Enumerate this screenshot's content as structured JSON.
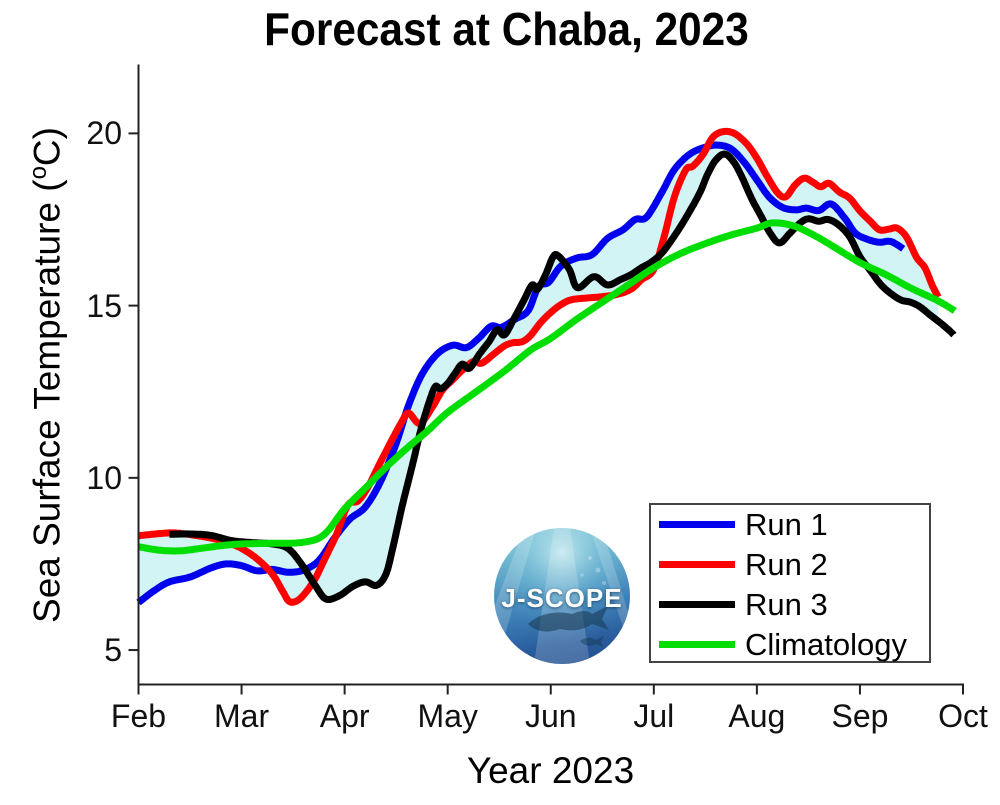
{
  "title": "Forecast at Chaba, 2023",
  "axes": {
    "xlabel": "Year 2023",
    "ylabel_prefix": "Sea Surface Temperature (",
    "ylabel_sup": "o",
    "ylabel_suffix": "C)",
    "x_tick_labels": [
      "Feb",
      "Mar",
      "Apr",
      "May",
      "Jun",
      "Jul",
      "Aug",
      "Sep",
      "Oct"
    ],
    "y_tick_labels": [
      "5",
      "10",
      "15",
      "20"
    ],
    "y_tick_values": [
      5,
      10,
      15,
      20
    ],
    "ylim": [
      4,
      22
    ]
  },
  "legend": {
    "entries": [
      {
        "label": "Run 1",
        "color": "#0000ee"
      },
      {
        "label": "Run 2",
        "color": "#ff0000"
      },
      {
        "label": "Run 3",
        "color": "#000000"
      },
      {
        "label": "Climatology",
        "color": "#00dd00"
      }
    ]
  },
  "logo": {
    "text": "J-SCOPE"
  },
  "chart_data": {
    "type": "line",
    "title": "Forecast at Chaba, 2023",
    "xlabel": "Year 2023",
    "ylabel": "Sea Surface Temperature (oC)",
    "x_unit": "months since Feb 1, 2023 (0=Feb ... 8=Oct)",
    "ylim": [
      4,
      22
    ],
    "fill_between_runs_color": "#d2f4f4",
    "series": [
      {
        "name": "Run 1",
        "color": "#0000ee",
        "points": [
          [
            0.0,
            6.38
          ],
          [
            0.15,
            6.72
          ],
          [
            0.3,
            6.98
          ],
          [
            0.5,
            7.12
          ],
          [
            0.7,
            7.38
          ],
          [
            0.85,
            7.5
          ],
          [
            1.0,
            7.45
          ],
          [
            1.15,
            7.3
          ],
          [
            1.3,
            7.34
          ],
          [
            1.45,
            7.26
          ],
          [
            1.6,
            7.32
          ],
          [
            1.75,
            7.6
          ],
          [
            1.9,
            8.25
          ],
          [
            2.05,
            8.8
          ],
          [
            2.2,
            9.15
          ],
          [
            2.35,
            9.9
          ],
          [
            2.5,
            11.0
          ],
          [
            2.62,
            12.1
          ],
          [
            2.75,
            13.0
          ],
          [
            2.9,
            13.6
          ],
          [
            3.05,
            13.85
          ],
          [
            3.18,
            13.78
          ],
          [
            3.3,
            14.05
          ],
          [
            3.42,
            14.4
          ],
          [
            3.52,
            14.37
          ],
          [
            3.65,
            14.6
          ],
          [
            3.78,
            14.85
          ],
          [
            3.88,
            15.55
          ],
          [
            3.98,
            15.68
          ],
          [
            4.1,
            16.15
          ],
          [
            4.25,
            16.38
          ],
          [
            4.4,
            16.48
          ],
          [
            4.55,
            16.95
          ],
          [
            4.7,
            17.2
          ],
          [
            4.82,
            17.5
          ],
          [
            4.93,
            17.57
          ],
          [
            5.08,
            18.3
          ],
          [
            5.2,
            18.95
          ],
          [
            5.35,
            19.4
          ],
          [
            5.5,
            19.6
          ],
          [
            5.62,
            19.66
          ],
          [
            5.75,
            19.55
          ],
          [
            5.88,
            19.15
          ],
          [
            6.0,
            18.65
          ],
          [
            6.12,
            18.15
          ],
          [
            6.25,
            17.85
          ],
          [
            6.38,
            17.78
          ],
          [
            6.48,
            17.83
          ],
          [
            6.6,
            17.76
          ],
          [
            6.72,
            17.95
          ],
          [
            6.85,
            17.55
          ],
          [
            6.95,
            17.12
          ],
          [
            7.05,
            16.95
          ],
          [
            7.18,
            16.84
          ],
          [
            7.3,
            16.86
          ],
          [
            7.42,
            16.65
          ]
        ]
      },
      {
        "name": "Run 2",
        "color": "#ff0000",
        "points": [
          [
            0.0,
            8.32
          ],
          [
            0.2,
            8.38
          ],
          [
            0.35,
            8.4
          ],
          [
            0.55,
            8.33
          ],
          [
            0.75,
            8.22
          ],
          [
            0.9,
            8.08
          ],
          [
            1.0,
            7.95
          ],
          [
            1.15,
            7.65
          ],
          [
            1.3,
            7.2
          ],
          [
            1.4,
            6.7
          ],
          [
            1.47,
            6.4
          ],
          [
            1.57,
            6.5
          ],
          [
            1.7,
            7.0
          ],
          [
            1.8,
            7.6
          ],
          [
            1.92,
            8.35
          ],
          [
            2.03,
            9.2
          ],
          [
            2.13,
            9.33
          ],
          [
            2.22,
            9.7
          ],
          [
            2.33,
            10.35
          ],
          [
            2.45,
            11.05
          ],
          [
            2.55,
            11.6
          ],
          [
            2.62,
            11.88
          ],
          [
            2.73,
            11.58
          ],
          [
            2.85,
            12.05
          ],
          [
            2.95,
            12.55
          ],
          [
            3.05,
            12.85
          ],
          [
            3.15,
            13.15
          ],
          [
            3.25,
            13.38
          ],
          [
            3.33,
            13.33
          ],
          [
            3.45,
            13.6
          ],
          [
            3.55,
            13.83
          ],
          [
            3.63,
            13.92
          ],
          [
            3.72,
            13.95
          ],
          [
            3.8,
            14.12
          ],
          [
            3.9,
            14.5
          ],
          [
            4.0,
            14.8
          ],
          [
            4.1,
            15.03
          ],
          [
            4.2,
            15.17
          ],
          [
            4.35,
            15.22
          ],
          [
            4.5,
            15.26
          ],
          [
            4.65,
            15.33
          ],
          [
            4.78,
            15.48
          ],
          [
            4.88,
            15.75
          ],
          [
            5.0,
            16.05
          ],
          [
            5.1,
            17.0
          ],
          [
            5.2,
            18.16
          ],
          [
            5.31,
            18.94
          ],
          [
            5.38,
            19.05
          ],
          [
            5.48,
            19.4
          ],
          [
            5.57,
            19.88
          ],
          [
            5.67,
            20.05
          ],
          [
            5.78,
            20.0
          ],
          [
            5.9,
            19.7
          ],
          [
            6.0,
            19.28
          ],
          [
            6.1,
            18.75
          ],
          [
            6.2,
            18.28
          ],
          [
            6.28,
            18.16
          ],
          [
            6.37,
            18.5
          ],
          [
            6.46,
            18.7
          ],
          [
            6.55,
            18.57
          ],
          [
            6.62,
            18.45
          ],
          [
            6.7,
            18.55
          ],
          [
            6.8,
            18.3
          ],
          [
            6.9,
            18.12
          ],
          [
            7.0,
            17.75
          ],
          [
            7.1,
            17.45
          ],
          [
            7.19,
            17.2
          ],
          [
            7.28,
            17.22
          ],
          [
            7.36,
            17.25
          ],
          [
            7.45,
            17.0
          ],
          [
            7.55,
            16.4
          ],
          [
            7.63,
            16.1
          ],
          [
            7.7,
            15.6
          ],
          [
            7.76,
            15.25
          ]
        ]
      },
      {
        "name": "Run 3",
        "color": "#000000",
        "points": [
          [
            0.3,
            8.36
          ],
          [
            0.5,
            8.37
          ],
          [
            0.7,
            8.33
          ],
          [
            0.9,
            8.18
          ],
          [
            1.1,
            8.12
          ],
          [
            1.3,
            8.08
          ],
          [
            1.45,
            7.95
          ],
          [
            1.58,
            7.5
          ],
          [
            1.72,
            6.85
          ],
          [
            1.82,
            6.48
          ],
          [
            1.95,
            6.58
          ],
          [
            2.08,
            6.85
          ],
          [
            2.2,
            6.98
          ],
          [
            2.31,
            6.88
          ],
          [
            2.4,
            7.2
          ],
          [
            2.47,
            8.0
          ],
          [
            2.56,
            9.2
          ],
          [
            2.66,
            10.4
          ],
          [
            2.74,
            11.4
          ],
          [
            2.82,
            12.2
          ],
          [
            2.88,
            12.65
          ],
          [
            2.93,
            12.58
          ],
          [
            3.0,
            12.74
          ],
          [
            3.07,
            13.03
          ],
          [
            3.14,
            13.3
          ],
          [
            3.21,
            13.18
          ],
          [
            3.31,
            13.6
          ],
          [
            3.4,
            13.95
          ],
          [
            3.48,
            14.3
          ],
          [
            3.55,
            14.15
          ],
          [
            3.64,
            14.6
          ],
          [
            3.74,
            15.16
          ],
          [
            3.82,
            15.6
          ],
          [
            3.87,
            15.47
          ],
          [
            3.95,
            15.9
          ],
          [
            4.02,
            16.4
          ],
          [
            4.07,
            16.45
          ],
          [
            4.18,
            16.05
          ],
          [
            4.26,
            15.52
          ],
          [
            4.42,
            15.84
          ],
          [
            4.55,
            15.6
          ],
          [
            4.68,
            15.76
          ],
          [
            4.78,
            15.9
          ],
          [
            4.88,
            16.1
          ],
          [
            4.97,
            16.25
          ],
          [
            5.07,
            16.5
          ],
          [
            5.16,
            16.85
          ],
          [
            5.26,
            17.3
          ],
          [
            5.36,
            17.8
          ],
          [
            5.45,
            18.3
          ],
          [
            5.52,
            18.8
          ],
          [
            5.6,
            19.22
          ],
          [
            5.69,
            19.4
          ],
          [
            5.78,
            19.15
          ],
          [
            5.86,
            18.7
          ],
          [
            5.95,
            18.1
          ],
          [
            6.04,
            17.6
          ],
          [
            6.13,
            17.1
          ],
          [
            6.22,
            16.82
          ],
          [
            6.32,
            17.1
          ],
          [
            6.42,
            17.4
          ],
          [
            6.5,
            17.52
          ],
          [
            6.6,
            17.45
          ],
          [
            6.69,
            17.5
          ],
          [
            6.79,
            17.35
          ],
          [
            6.9,
            17.0
          ],
          [
            7.0,
            16.42
          ],
          [
            7.1,
            16.02
          ],
          [
            7.2,
            15.62
          ],
          [
            7.3,
            15.35
          ],
          [
            7.4,
            15.16
          ],
          [
            7.49,
            15.1
          ],
          [
            7.58,
            14.97
          ],
          [
            7.68,
            14.73
          ],
          [
            7.78,
            14.5
          ],
          [
            7.87,
            14.27
          ],
          [
            7.91,
            14.15
          ]
        ]
      },
      {
        "name": "Climatology",
        "color": "#00dd00",
        "points": [
          [
            0.0,
            8.0
          ],
          [
            0.2,
            7.9
          ],
          [
            0.4,
            7.88
          ],
          [
            0.6,
            7.95
          ],
          [
            0.8,
            8.03
          ],
          [
            1.0,
            8.08
          ],
          [
            1.3,
            8.1
          ],
          [
            1.6,
            8.13
          ],
          [
            1.8,
            8.35
          ],
          [
            2.0,
            9.1
          ],
          [
            2.2,
            9.7
          ],
          [
            2.4,
            10.3
          ],
          [
            2.6,
            10.85
          ],
          [
            2.8,
            11.35
          ],
          [
            3.0,
            11.9
          ],
          [
            3.3,
            12.55
          ],
          [
            3.55,
            13.1
          ],
          [
            3.8,
            13.7
          ],
          [
            4.0,
            14.05
          ],
          [
            4.25,
            14.6
          ],
          [
            4.5,
            15.1
          ],
          [
            4.75,
            15.6
          ],
          [
            5.0,
            16.1
          ],
          [
            5.25,
            16.5
          ],
          [
            5.5,
            16.8
          ],
          [
            5.75,
            17.05
          ],
          [
            6.0,
            17.25
          ],
          [
            6.15,
            17.4
          ],
          [
            6.35,
            17.32
          ],
          [
            6.55,
            17.05
          ],
          [
            6.75,
            16.7
          ],
          [
            7.0,
            16.25
          ],
          [
            7.25,
            15.9
          ],
          [
            7.5,
            15.5
          ],
          [
            7.75,
            15.15
          ],
          [
            7.92,
            14.85
          ]
        ]
      }
    ]
  }
}
